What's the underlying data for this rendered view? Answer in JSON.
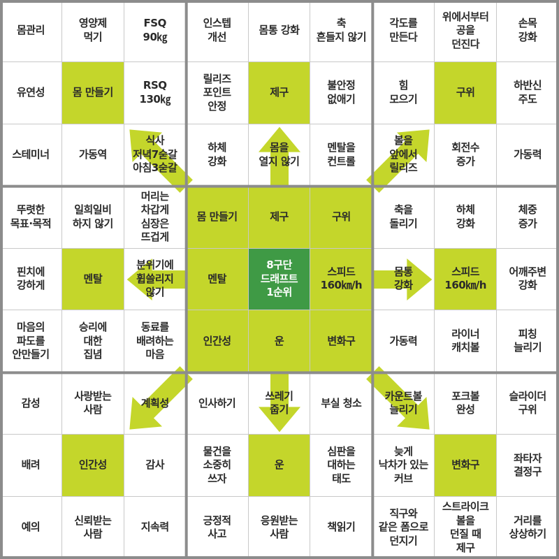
{
  "colors": {
    "highlight": "#c4d62b",
    "goal": "#3f9a45",
    "arrow": "#c4d62b",
    "block_border": "#8c8c8c"
  },
  "grid": [
    [
      "몸관리",
      "영양제\n먹기",
      "FSQ\n90㎏",
      "인스텝\n개선",
      "몸통 강화",
      "축\n흔들지 않기",
      "각도를\n만든다",
      "위에서부터\n공을\n던진다",
      "손목\n강화"
    ],
    [
      "유연성",
      "몸 만들기",
      "RSQ\n130㎏",
      "릴리즈\n포인트\n안정",
      "제구",
      "불안정\n없애기",
      "힘\n모으기",
      "구위",
      "하반신\n주도"
    ],
    [
      "스테미너",
      "가동역",
      "식사\n저녁7숟갈\n아침3숟갈",
      "하체\n강화",
      "몸을\n열지 않기",
      "멘탈을\n컨트롤",
      "볼을\n앞에서\n릴리즈",
      "회전수\n증가",
      "가동력"
    ],
    [
      "뚜렷한\n목표·목적",
      "일희일비\n하지 않기",
      "머리는\n차갑게\n심장은\n뜨겁게",
      "몸 만들기",
      "제구",
      "구위",
      "축을\n돌리기",
      "하체\n강화",
      "체중\n증가"
    ],
    [
      "핀치에\n강하게",
      "멘탈",
      "분위기에\n휩쓸리지\n않기",
      "멘탈",
      "8구단\n드래프트\n1순위",
      "스피드\n160㎞/h",
      "몸통\n강화",
      "스피드\n160㎞/h",
      "어깨주변\n강화"
    ],
    [
      "마음의\n파도를\n안만들기",
      "승리에\n대한\n집념",
      "동료를\n배려하는\n마음",
      "인간성",
      "운",
      "변화구",
      "가동력",
      "라이너\n캐치볼",
      "피칭\n늘리기"
    ],
    [
      "감성",
      "사랑받는\n사람",
      "계획성",
      "인사하기",
      "쓰레기\n줍기",
      "부실 청소",
      "카운트볼\n늘리기",
      "포크볼\n완성",
      "슬라이더\n구위"
    ],
    [
      "배려",
      "인간성",
      "감사",
      "물건을\n소중히\n쓰자",
      "운",
      "심판을\n대하는\n태도",
      "늦게\n낙차가 있는\n커브",
      "변화구",
      "좌타자\n결정구"
    ],
    [
      "예의",
      "신뢰받는\n사람",
      "지속력",
      "긍정적\n사고",
      "응원받는\n사람",
      "책읽기",
      "직구와\n같은 폼으로\n던지기",
      "스트라이크\n볼을\n던질 때\n제구",
      "거리를\n상상하기"
    ]
  ]
}
